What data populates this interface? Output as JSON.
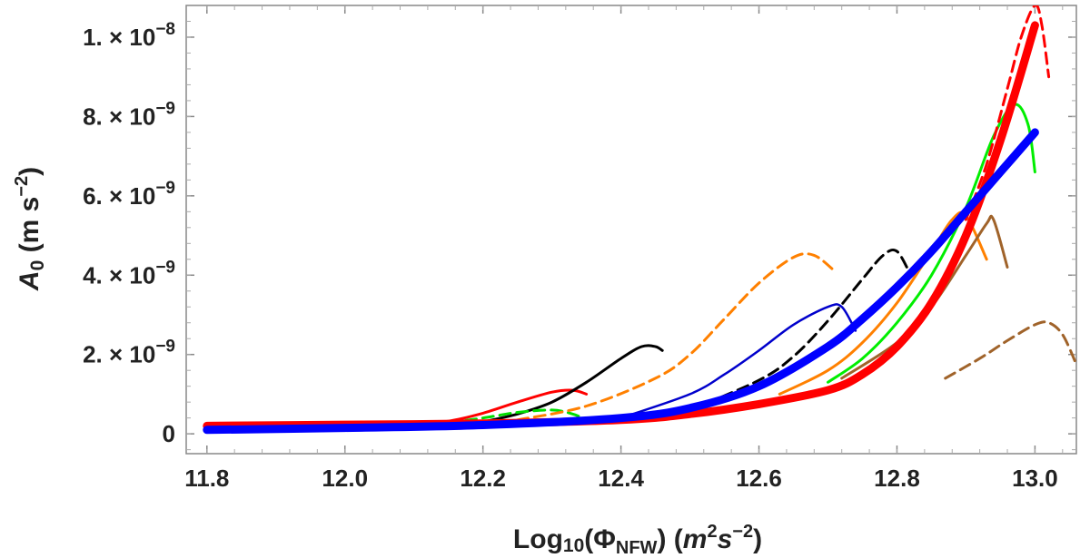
{
  "chart_data": {
    "type": "line",
    "title": "",
    "xlabel": {
      "base": "Log",
      "sub": "10",
      "paren_open": "(Φ",
      "phi_sub": "NFW",
      "unit_open": ") (",
      "unit": "m",
      "exp1": "2",
      "unit2": "s",
      "exp2": "−2",
      "close": ")"
    },
    "ylabel": {
      "base": "A",
      "sub": "0",
      "unit_open": " (m s",
      "exp": "−2",
      "close": ")"
    },
    "xlim": [
      11.77,
      13.06
    ],
    "ylim": [
      -5e-10,
      1.08e-08
    ],
    "x_ticks": [
      11.8,
      12.0,
      12.2,
      12.4,
      12.6,
      12.8,
      13.0
    ],
    "x_tick_labels": [
      "11.8",
      "12.0",
      "12.2",
      "12.4",
      "12.6",
      "12.8",
      "13.0"
    ],
    "y_ticks": [
      0,
      2e-09,
      4e-09,
      6e-09,
      8e-09,
      1e-08
    ],
    "y_tick_labels": [
      {
        "mant": "0",
        "exp": ""
      },
      {
        "mant": "2. × 10",
        "exp": "−9"
      },
      {
        "mant": "4. × 10",
        "exp": "−9"
      },
      {
        "mant": "6. × 10",
        "exp": "−9"
      },
      {
        "mant": "8. × 10",
        "exp": "−9"
      },
      {
        "mant": "1. × 10",
        "exp": "−8"
      }
    ],
    "grid": false,
    "series": [
      {
        "color": "#ff0000",
        "dash": false,
        "width": 9,
        "x": [
          11.8,
          12.0,
          12.2,
          12.4,
          12.5,
          12.6,
          12.7,
          12.75,
          12.8,
          12.85,
          12.9,
          12.95,
          13.0
        ],
        "y": [
          2e-10,
          2.3e-10,
          2.6e-10,
          3.5e-10,
          5e-10,
          7.5e-10,
          1.1e-09,
          1.5e-09,
          2.2e-09,
          3.3e-09,
          5e-09,
          7.4e-09,
          1.03e-08
        ]
      },
      {
        "color": "#0000ff",
        "dash": false,
        "width": 9,
        "x": [
          11.8,
          12.0,
          12.2,
          12.4,
          12.5,
          12.6,
          12.7,
          12.75,
          12.8,
          12.85,
          12.9,
          12.95,
          13.0
        ],
        "y": [
          1e-10,
          1.5e-10,
          2.2e-10,
          4e-10,
          6.5e-10,
          1.2e-09,
          2.2e-09,
          2.9e-09,
          3.7e-09,
          4.6e-09,
          5.6e-09,
          6.6e-09,
          7.6e-09
        ]
      },
      {
        "color": "#ff0000",
        "dash": false,
        "width": 3,
        "x": [
          11.8,
          12.0,
          12.1,
          12.15,
          12.2,
          12.25,
          12.3,
          12.33,
          12.35
        ],
        "y": [
          2e-10,
          2.3e-10,
          2.7e-10,
          3.2e-10,
          5.2e-10,
          8e-10,
          1.05e-09,
          1.1e-09,
          1e-09
        ]
      },
      {
        "color": "#000000",
        "dash": false,
        "width": 3,
        "x": [
          12.2,
          12.25,
          12.3,
          12.35,
          12.4,
          12.43,
          12.45,
          12.46
        ],
        "y": [
          3e-10,
          5e-10,
          8e-10,
          1.3e-09,
          1.9e-09,
          2.2e-09,
          2.2e-09,
          2.1e-09
        ]
      },
      {
        "color": "#00dd00",
        "dash": true,
        "width": 3,
        "x": [
          12.15,
          12.2,
          12.25,
          12.3,
          12.33,
          12.35
        ],
        "y": [
          2.8e-10,
          4e-10,
          5.4e-10,
          6e-10,
          5e-10,
          3.5e-10
        ]
      },
      {
        "color": "#ff8000",
        "dash": true,
        "width": 3,
        "x": [
          12.25,
          12.35,
          12.45,
          12.5,
          12.55,
          12.6,
          12.65,
          12.68,
          12.71
        ],
        "y": [
          3.5e-10,
          7e-10,
          1.4e-09,
          2e-09,
          2.9e-09,
          3.8e-09,
          4.45e-09,
          4.5e-09,
          4.1e-09
        ]
      },
      {
        "color": "#0000cc",
        "dash": false,
        "width": 2.5,
        "x": [
          12.4,
          12.5,
          12.55,
          12.6,
          12.65,
          12.7,
          12.72,
          12.74
        ],
        "y": [
          4e-10,
          1e-09,
          1.5e-09,
          2.1e-09,
          2.75e-09,
          3.2e-09,
          3.2e-09,
          2.6e-09
        ]
      },
      {
        "color": "#000000",
        "dash": true,
        "width": 3,
        "x": [
          12.5,
          12.6,
          12.65,
          12.7,
          12.75,
          12.78,
          12.8,
          12.82
        ],
        "y": [
          6e-10,
          1.35e-09,
          1.95e-09,
          2.85e-09,
          3.9e-09,
          4.5e-09,
          4.6e-09,
          4e-09
        ]
      },
      {
        "color": "#ff8000",
        "dash": false,
        "width": 3,
        "x": [
          12.63,
          12.7,
          12.75,
          12.8,
          12.85,
          12.88,
          12.9,
          12.93
        ],
        "y": [
          1e-09,
          1.6e-09,
          2.3e-09,
          3.3e-09,
          4.6e-09,
          5.4e-09,
          5.5e-09,
          4.4e-09
        ]
      },
      {
        "color": "#a0632a",
        "dash": false,
        "width": 3,
        "x": [
          12.72,
          12.8,
          12.85,
          12.9,
          12.93,
          12.94,
          12.96
        ],
        "y": [
          1.4e-09,
          2.3e-09,
          3.2e-09,
          4.5e-09,
          5.3e-09,
          5.4e-09,
          4.2e-09
        ]
      },
      {
        "color": "#00ee00",
        "dash": false,
        "width": 3,
        "x": [
          12.7,
          12.75,
          12.8,
          12.85,
          12.9,
          12.94,
          12.97,
          12.99,
          13.0
        ],
        "y": [
          1.3e-09,
          1.9e-09,
          2.8e-09,
          4e-09,
          5.7e-09,
          7.5e-09,
          8.3e-09,
          7.8e-09,
          6.6e-09
        ]
      },
      {
        "color": "#ff0000",
        "dash": true,
        "width": 3,
        "x": [
          12.9,
          12.93,
          12.96,
          12.98,
          13.0,
          13.01,
          13.02
        ],
        "y": [
          5.4e-09,
          6.8e-09,
          8.7e-09,
          1e-08,
          1.08e-08,
          1.03e-08,
          9e-09
        ]
      },
      {
        "color": "#a0632a",
        "dash": true,
        "width": 3,
        "x": [
          12.87,
          12.92,
          12.96,
          13.0,
          13.02,
          13.04,
          13.06
        ],
        "y": [
          1.4e-09,
          1.9e-09,
          2.35e-09,
          2.75e-09,
          2.8e-09,
          2.5e-09,
          1.75e-09
        ]
      }
    ]
  }
}
